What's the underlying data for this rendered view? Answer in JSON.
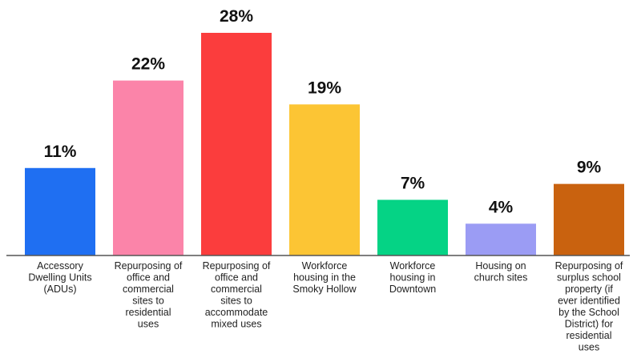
{
  "chart_data": {
    "type": "bar",
    "categories": [
      [
        "Accessory",
        "Dwelling Units",
        "(ADUs)"
      ],
      [
        "Repurposing of",
        "office and",
        "commercial",
        "sites to",
        "residential",
        "uses"
      ],
      [
        "Repurposing of",
        "office and",
        "commercial",
        "sites to",
        "accommodate",
        "mixed uses"
      ],
      [
        "Workforce",
        "housing in the",
        "Smoky Hollow"
      ],
      [
        "Workforce",
        "housing in",
        "Downtown"
      ],
      [
        "Housing on",
        "church sites"
      ],
      [
        "Repurposing of",
        "surplus school",
        "property (if",
        "ever identified",
        "by the School",
        "District) for",
        "residential",
        "uses"
      ]
    ],
    "values": [
      11,
      22,
      28,
      19,
      7,
      4,
      9
    ],
    "value_labels": [
      "11%",
      "22%",
      "28%",
      "19%",
      "7%",
      "4%",
      "9%"
    ],
    "colors": [
      "#1f6ff2",
      "#fb84a9",
      "#fb3d3d",
      "#fcc534",
      "#05d385",
      "#9b9cf4",
      "#c9620f"
    ],
    "ylim": [
      0,
      28
    ],
    "grid": false,
    "legend": "none"
  }
}
